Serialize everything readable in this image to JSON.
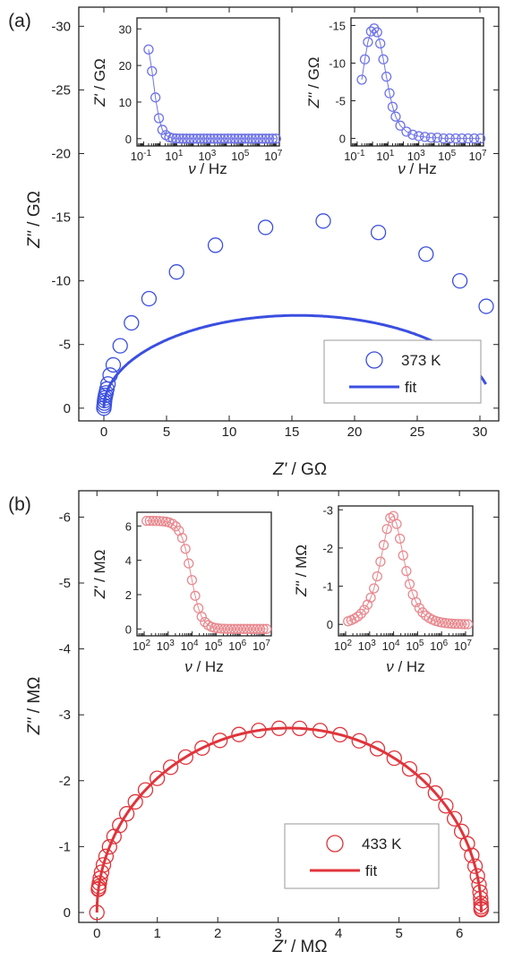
{
  "figure": {
    "panels": [
      {
        "label": "(a)",
        "temperature": "373 K",
        "fit_label": "fit",
        "color_main": "#3b4fe0",
        "color_inset": "#6f74e6",
        "xlabel": {
          "var": "Z'",
          "unit": " / GΩ"
        },
        "ylabel": {
          "var": "Z''",
          "unit": " / GΩ"
        },
        "inset_left_ylabel": {
          "var": "Z'",
          "unit": " / GΩ"
        },
        "inset_right_ylabel": {
          "var": "Z''",
          "unit": " / GΩ"
        },
        "inset_xlabel": {
          "var": "ν",
          "unit": " / Hz"
        }
      },
      {
        "label": "(b)",
        "temperature": "433 K",
        "fit_label": "fit",
        "color_main": "#e0343b",
        "color_inset": "#e88a90",
        "xlabel": {
          "var": "Z'",
          "unit": " / MΩ"
        },
        "ylabel": {
          "var": "Z''",
          "unit": " / MΩ"
        },
        "inset_left_ylabel": {
          "var": "Z'",
          "unit": " / MΩ"
        },
        "inset_right_ylabel": {
          "var": "Z''",
          "unit": " / MΩ"
        },
        "inset_xlabel": {
          "var": "ν",
          "unit": " / Hz"
        }
      }
    ]
  },
  "chart_data": [
    {
      "type": "scatter",
      "panel": "(a)",
      "role": "main-nyquist",
      "xlim": [
        -2,
        31.5
      ],
      "ylim": [
        1,
        -31.5
      ],
      "xticks": [
        0,
        5,
        10,
        15,
        20,
        25,
        30
      ],
      "yticks": [
        0,
        -5,
        -10,
        -15,
        -20,
        -25,
        -30
      ],
      "series": [
        {
          "name": "373 K",
          "style": "open-circle",
          "x": [
            0.0,
            0.02,
            0.04,
            0.06,
            0.09,
            0.13,
            0.18,
            0.24,
            0.33,
            0.5,
            0.75,
            1.3,
            2.2,
            3.6,
            5.8,
            8.9,
            12.9,
            17.5,
            21.9,
            25.7,
            28.4,
            30.5
          ],
          "y": [
            0.0,
            -0.2,
            -0.4,
            -0.6,
            -0.8,
            -1.0,
            -1.2,
            -1.5,
            -1.9,
            -2.6,
            -3.4,
            -4.9,
            -6.7,
            -8.6,
            -10.7,
            -12.8,
            -14.2,
            -14.7,
            -13.8,
            -12.1,
            -10.0,
            -8.0
          ]
        },
        {
          "name": "fit",
          "style": "line",
          "model": "semicircle",
          "R": 31.0,
          "center": 15.5,
          "depression": 0.47,
          "x_end": 30.5
        }
      ]
    },
    {
      "type": "scatter",
      "panel": "(a)",
      "role": "inset-left",
      "x_scale": "log",
      "xlim_log10": [
        -1.4,
        7.2
      ],
      "ylim": [
        -2,
        33
      ],
      "xtick_exponents": [
        -1,
        1,
        3,
        5,
        7
      ],
      "yticks": [
        0,
        10,
        20,
        30
      ],
      "series": [
        {
          "name": "Z'",
          "style": "open-circle",
          "model": "debye-real",
          "R": 30.5,
          "log10_fpeak": -0.4,
          "log10_range": [
            -0.7,
            7.0
          ],
          "n_points": 38
        }
      ]
    },
    {
      "type": "scatter",
      "panel": "(a)",
      "role": "inset-right",
      "x_scale": "log",
      "xlim_log10": [
        -1.4,
        7.2
      ],
      "ylim": [
        1,
        -16
      ],
      "xtick_exponents": [
        -1,
        1,
        3,
        5,
        7
      ],
      "yticks": [
        0,
        -5,
        -10,
        -15
      ],
      "series": [
        {
          "name": "Z''",
          "style": "open-circle",
          "log10_f": [
            -0.7,
            -0.5,
            -0.3,
            -0.1,
            0.1,
            0.3,
            0.5,
            0.7,
            0.9,
            1.1,
            1.3,
            1.5,
            1.8,
            2.2,
            2.6,
            3.0,
            3.4,
            3.8,
            4.2,
            4.6,
            5.0,
            5.4,
            5.8,
            6.2,
            6.6,
            7.0
          ],
          "values": [
            -7.8,
            -10.5,
            -12.8,
            -14.2,
            -14.6,
            -14.1,
            -12.6,
            -10.5,
            -8.2,
            -6.0,
            -4.2,
            -2.9,
            -1.7,
            -0.9,
            -0.5,
            -0.3,
            -0.2,
            -0.1,
            -0.1,
            0,
            0,
            0,
            0,
            0,
            0,
            0
          ]
        }
      ]
    },
    {
      "type": "scatter",
      "panel": "(b)",
      "role": "main-nyquist",
      "xlim": [
        -0.3,
        6.65
      ],
      "ylim": [
        0.15,
        -6.4
      ],
      "xticks": [
        0,
        1,
        2,
        3,
        4,
        5,
        6
      ],
      "yticks": [
        0,
        -1,
        -2,
        -3,
        -4,
        -5,
        -6
      ],
      "series": [
        {
          "name": "433 K",
          "style": "open-circle",
          "model": "semicircle",
          "R": 6.36,
          "center": 3.18,
          "depression": 0.88,
          "n_points": 45
        },
        {
          "name": "fit",
          "style": "line",
          "model": "semicircle",
          "R": 6.36,
          "center": 3.18,
          "depression": 0.88
        }
      ]
    },
    {
      "type": "scatter",
      "panel": "(b)",
      "role": "inset-left",
      "x_scale": "log",
      "xlim_log10": [
        1.7,
        7.3
      ],
      "ylim": [
        -0.4,
        6.8
      ],
      "xtick_exponents": [
        2,
        3,
        4,
        5,
        6,
        7
      ],
      "yticks": [
        0,
        2,
        4,
        6
      ],
      "series": [
        {
          "name": "Z'",
          "style": "open-circle",
          "model": "debye-real",
          "R": 6.3,
          "log10_fpeak": 3.95,
          "log10_range": [
            2.1,
            7.1
          ],
          "n_points": 38
        }
      ]
    },
    {
      "type": "scatter",
      "panel": "(b)",
      "role": "inset-right",
      "x_scale": "log",
      "xlim_log10": [
        1.7,
        7.3
      ],
      "ylim": [
        0.3,
        -3.1
      ],
      "xtick_exponents": [
        2,
        3,
        4,
        5,
        6,
        7
      ],
      "yticks": [
        0,
        -1,
        -2,
        -3
      ],
      "series": [
        {
          "name": "Z''",
          "style": "open-circle",
          "model": "debye-imag",
          "R": 5.7,
          "log10_fpeak": 3.95,
          "log10_range": [
            2.1,
            7.1
          ],
          "n_points": 38
        }
      ]
    }
  ]
}
